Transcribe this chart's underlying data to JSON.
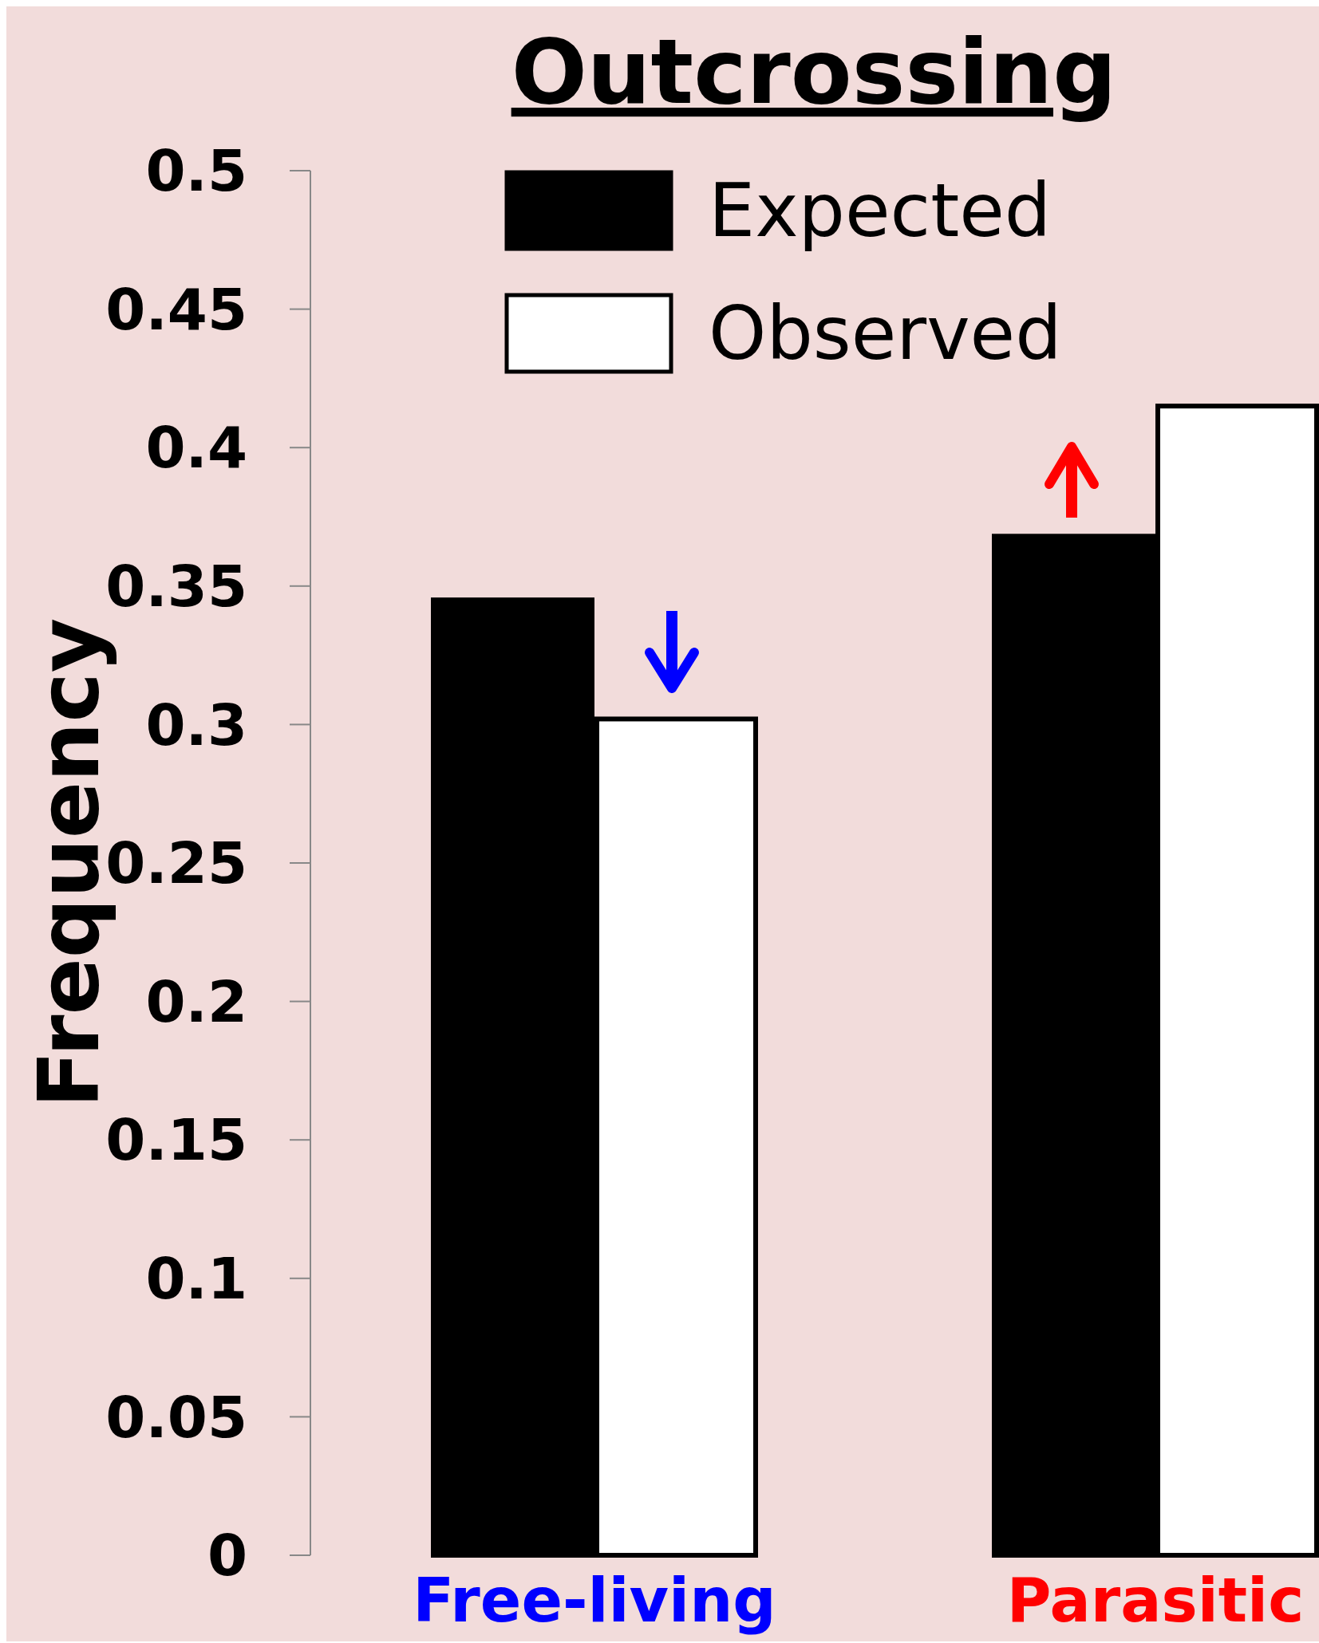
{
  "chart_data": {
    "type": "bar",
    "title": "Outcrossing",
    "ylabel": "Frequency",
    "categories": [
      "Free-living",
      "Parasitic"
    ],
    "series": [
      {
        "name": "Expected",
        "color": "#000000",
        "values": [
          0.345,
          0.368
        ]
      },
      {
        "name": "Observed",
        "color": "#ffffff",
        "values": [
          0.302,
          0.415
        ]
      }
    ],
    "ylim": [
      0,
      0.5
    ],
    "yticks": [
      0,
      0.05,
      0.1,
      0.15,
      0.2,
      0.25,
      0.3,
      0.35,
      0.4,
      0.45,
      0.5
    ],
    "grid": false,
    "legend": "top"
  }
}
